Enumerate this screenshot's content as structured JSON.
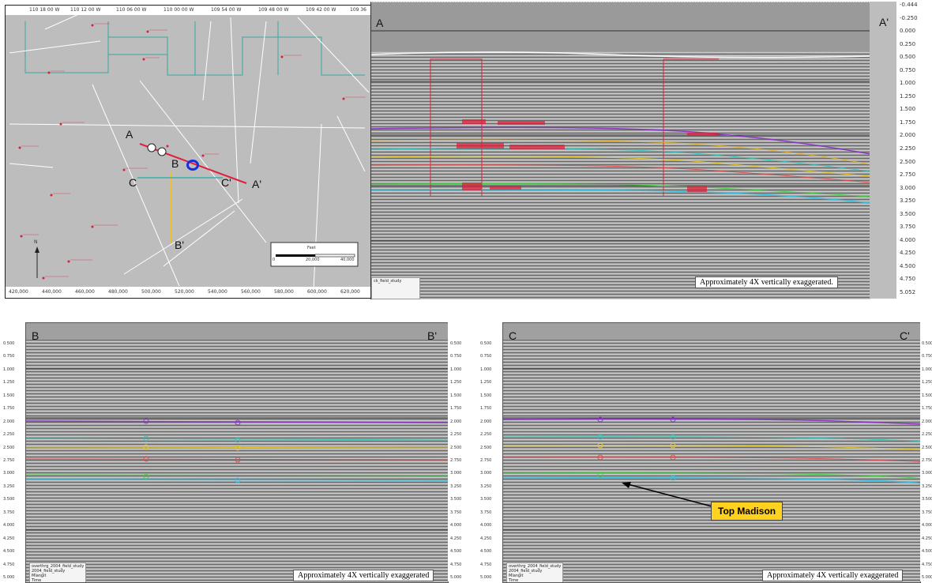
{
  "base_map": {
    "point_labels": {
      "A": "A",
      "A_prime": "A'",
      "B": "B",
      "B_prime": "B'",
      "C": "C",
      "C_prime": "C'"
    },
    "north_label": "N",
    "scale_bar": {
      "unit": "Feet",
      "ticks": [
        "0",
        "20,000",
        "40,000"
      ]
    },
    "x_ticks": [
      "420,000",
      "440,000",
      "460,000",
      "480,000",
      "500,000",
      "520,000",
      "540,000",
      "560,000",
      "580,000",
      "600,000",
      "620,000"
    ],
    "top_ticks": [
      "110 18 00 W",
      "110 12 00 W",
      "110 06 00 W",
      "110 00 00 W",
      "109 54 00 W",
      "109 48 00 W",
      "109 42 00 W",
      "109 36"
    ],
    "colors": {
      "line_AA": "#e0203a",
      "line_BB": "#f0c030",
      "line_CC": "#3ab0a8",
      "well_marker": "#1a2ee0",
      "wells": "#d8203a"
    }
  },
  "section_a": {
    "left_label": "A",
    "right_label": "A'",
    "note": "Approximately 4X vertically exaggerated.",
    "axis_ticks": [
      "-0.444",
      "-0.250",
      "0.000",
      "0.250",
      "0.500",
      "0.750",
      "1.000",
      "1.250",
      "1.500",
      "1.750",
      "2.000",
      "2.250",
      "2.500",
      "2.750",
      "3.000",
      "3.250",
      "3.500",
      "3.750",
      "4.000",
      "4.250",
      "4.500",
      "4.750",
      "5.052"
    ],
    "legend": "ck_field_study"
  },
  "section_b": {
    "left_label": "B",
    "right_label": "B'",
    "note": "Approximately 4X vertically exaggerated",
    "axis_ticks": [
      "0.500",
      "0.750",
      "1.000",
      "1.250",
      "1.500",
      "1.750",
      "2.000",
      "2.250",
      "2.500",
      "2.750",
      "3.000",
      "3.250",
      "3.500",
      "3.750",
      "4.000",
      "4.250",
      "4.500",
      "4.750",
      "5.000"
    ],
    "legend": [
      "overthrg_2004_field_study",
      "2004_field_study",
      "Mlangit",
      "Time"
    ]
  },
  "section_c": {
    "left_label": "C",
    "right_label": "C'",
    "note": "Approximately 4X vertically exaggerated",
    "callout": "Top Madison",
    "axis_ticks": [
      "0.500",
      "0.750",
      "1.000",
      "1.250",
      "1.500",
      "1.750",
      "2.000",
      "2.250",
      "2.500",
      "2.750",
      "3.000",
      "3.250",
      "3.500",
      "3.750",
      "4.000",
      "4.250",
      "4.500",
      "4.750",
      "5.000"
    ],
    "legend": [
      "overthrg_2004_field_study",
      "2004_field_study",
      "Mlangit",
      "Time"
    ]
  }
}
